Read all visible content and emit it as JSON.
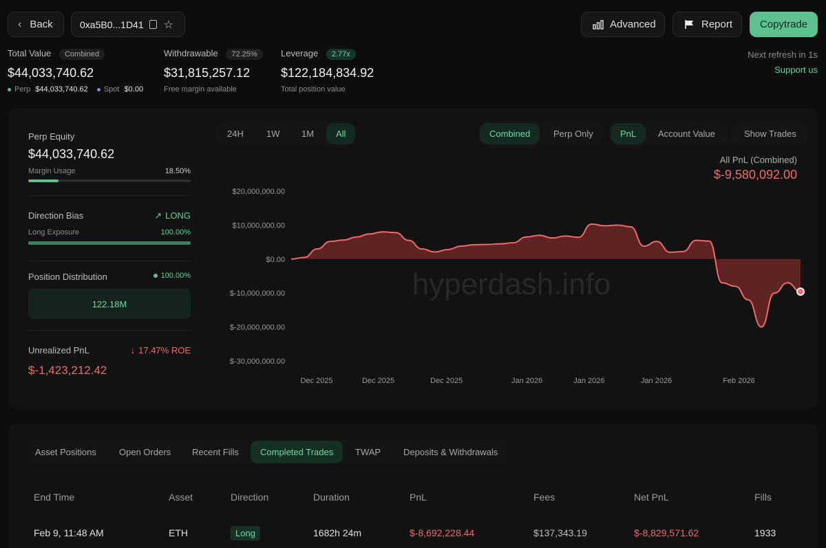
{
  "header": {
    "back_label": "Back",
    "address": "0xa5B0...1D41",
    "advanced_label": "Advanced",
    "report_label": "Report",
    "copytrade_label": "Copytrade"
  },
  "summary": {
    "total_value": {
      "label": "Total Value",
      "badge": "Combined",
      "value": "$44,033,740.62",
      "perp_label": "Perp",
      "perp_value": "$44,033,740.62",
      "spot_label": "Spot",
      "spot_value": "$0.00"
    },
    "withdrawable": {
      "label": "Withdrawable",
      "badge": "72.25%",
      "value": "$31,815,257.12",
      "sub": "Free margin available"
    },
    "leverage": {
      "label": "Leverage",
      "badge": "2.77x",
      "value": "$122,184,834.92",
      "sub": "Total position value"
    },
    "refresh_text": "Next refresh in 1s",
    "support_label": "Support us"
  },
  "left_panel": {
    "perp_equity_label": "Perp Equity",
    "perp_equity_value": "$44,033,740.62",
    "margin_usage_label": "Margin Usage",
    "margin_usage_value": "18.50%",
    "margin_usage_fraction": 0.185,
    "direction_bias_label": "Direction Bias",
    "direction_bias_value": "LONG",
    "long_exposure_label": "Long Exposure",
    "long_exposure_value": "100.00%",
    "long_exposure_fraction": 1.0,
    "position_distribution_label": "Position Distribution",
    "position_distribution_value": "100.00%",
    "position_distribution_amount": "122.18M",
    "unrealized_pnl_label": "Unrealized PnL",
    "unrealized_roe": "17.47% ROE",
    "unrealized_pnl_value": "$-1,423,212.42"
  },
  "chart_controls": {
    "ranges": [
      "24H",
      "1W",
      "1M",
      "All"
    ],
    "active_range": "All",
    "modes": [
      "Combined",
      "Perp Only"
    ],
    "metrics": [
      "PnL",
      "Account Value"
    ],
    "show_trades_label": "Show Trades",
    "pnl_title": "All PnL (Combined)",
    "pnl_value": "$-9,580,092.00",
    "watermark": "hyperdash.info"
  },
  "chart_data": {
    "type": "area",
    "title": "All PnL (Combined)",
    "y_ticks": [
      "$20,000,000.00",
      "$10,000,000.00",
      "$0.00",
      "$-10,000,000.00",
      "$-20,000,000.00",
      "$-30,000,000.00"
    ],
    "ylim": [
      -30000000,
      20000000
    ],
    "x_ticks": [
      "Dec 2025",
      "Dec 2025",
      "Dec 2025",
      "Jan 2026",
      "Jan 2026",
      "Jan 2026",
      "Feb 2026"
    ],
    "series": [
      {
        "values": [
          0,
          500000,
          3000000,
          5200000,
          5600000,
          6500000,
          7400000,
          8000000,
          7800000,
          5500000,
          3000000,
          2100000,
          2800000,
          3800000,
          4200000,
          4300000,
          4500000,
          4800000,
          6500000,
          7000000,
          6200000,
          6800000,
          6400000,
          10300000,
          9800000,
          10000000,
          9500000,
          3800000,
          5200000,
          2000000,
          2200000,
          5500000,
          5300000,
          -7000000,
          -8000000,
          -12000000,
          -20000000,
          -10000000,
          -7000000,
          -9580092
        ]
      }
    ],
    "color": "#ef6a6a",
    "grid": false
  },
  "bottom_tabs": {
    "items": [
      "Asset Positions",
      "Open Orders",
      "Recent Fills",
      "Completed Trades",
      "TWAP",
      "Deposits & Withdrawals"
    ],
    "active": "Completed Trades"
  },
  "table": {
    "columns": [
      "End Time",
      "Asset",
      "Direction",
      "Duration",
      "PnL",
      "Fees",
      "Net PnL",
      "Fills"
    ],
    "rows": [
      {
        "end_time": "Feb 9, 11:48 AM",
        "asset": "ETH",
        "direction": "Long",
        "duration": "1682h 24m",
        "pnl": "$-8,692,228.44",
        "fees": "$137,343.19",
        "net_pnl": "$-8,829,571.62",
        "fills": "1933"
      }
    ]
  }
}
